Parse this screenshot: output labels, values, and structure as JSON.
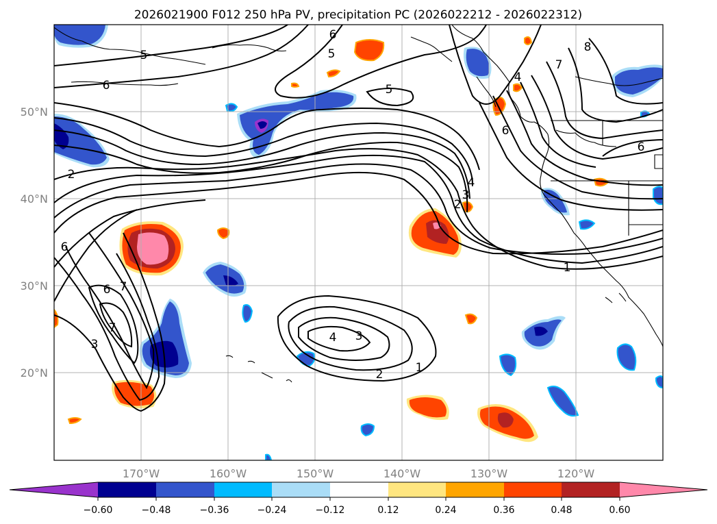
{
  "title": "2026021900 F012 250 hPa PV, precipitation PC (2026022212 - 2026022312)",
  "axes": {
    "lon_labels": [
      "170°W",
      "160°W",
      "150°W",
      "140°W",
      "130°W",
      "120°W"
    ],
    "lat_labels": [
      "50°N",
      "40°N",
      "30°N",
      "20°N"
    ]
  },
  "colorbar": {
    "ticks": [
      "−0.60",
      "−0.48",
      "−0.36",
      "−0.24",
      "−0.12",
      "0.12",
      "0.24",
      "0.36",
      "0.48",
      "0.60"
    ],
    "colors": [
      "#9933cc",
      "#000090",
      "#3355cc",
      "#00bbff",
      "#aaddf7",
      "#ffffff",
      "#ffe680",
      "#ffa500",
      "#ff4400",
      "#b22222",
      "#ff88aa"
    ]
  },
  "contour_labels": {
    "l_5a": "5",
    "l_6a": "6",
    "l_6b": "6",
    "l_5b": "5",
    "l_5c": "5",
    "l_8": "8",
    "l_7a": "7",
    "l_4a": "4",
    "l_6c": "6",
    "l_6d": "6",
    "l_4b": "4",
    "l_3a": "3",
    "l_2a": "2",
    "l_1a": "1",
    "l_2b": "2",
    "l_6e": "6",
    "l_6f": "6",
    "l_7b": "7",
    "l_7c": "7",
    "l_3b": "3",
    "l_4c": "4",
    "l_3c": "3",
    "l_2c": "2",
    "l_1b": "1"
  },
  "palette": {
    "pink": "#ff88aa",
    "darkred": "#b22222",
    "red": "#ff4400",
    "orange": "#ffa500",
    "yellow": "#ffe680",
    "lightblue": "#aaddf7",
    "cyan": "#00bbff",
    "blue": "#3355cc",
    "navy": "#000090",
    "purple": "#9933cc"
  }
}
